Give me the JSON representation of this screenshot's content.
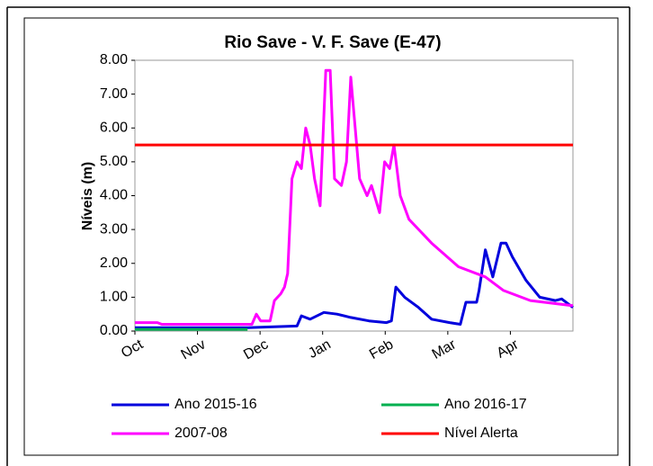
{
  "chart_data": {
    "type": "line",
    "title": "Rio Save - V. F. Save (E-47)",
    "y_label": "Níveis (m)",
    "xlim": [
      0,
      7
    ],
    "xticks": [
      {
        "value": 0,
        "label": "Oct"
      },
      {
        "value": 1,
        "label": "Nov"
      },
      {
        "value": 2,
        "label": "Dec"
      },
      {
        "value": 3,
        "label": "Jan"
      },
      {
        "value": 4,
        "label": "Feb"
      },
      {
        "value": 5,
        "label": "Mar"
      },
      {
        "value": 6,
        "label": "Apr"
      }
    ],
    "ylim": [
      0,
      8
    ],
    "yticks": [
      {
        "value": 0,
        "label": "0.00"
      },
      {
        "value": 1,
        "label": "1.00"
      },
      {
        "value": 2,
        "label": "2.00"
      },
      {
        "value": 3,
        "label": "3.00"
      },
      {
        "value": 4,
        "label": "4.00"
      },
      {
        "value": 5,
        "label": "5.00"
      },
      {
        "value": 6,
        "label": "6.00"
      },
      {
        "value": 7,
        "label": "7.00"
      },
      {
        "value": 8,
        "label": "8.00"
      }
    ],
    "grid": false,
    "series": [
      {
        "name": "Ano 2015-16",
        "color": "#0000dd",
        "x": [
          0,
          1.8,
          2.59,
          2.66,
          2.8,
          3.02,
          3.23,
          3.45,
          3.74,
          4.02,
          4.1,
          4.17,
          4.31,
          4.53,
          4.74,
          5.03,
          5.2,
          5.29,
          5.46,
          5.5,
          5.6,
          5.72,
          5.85,
          5.93,
          6.03,
          6.25,
          6.47,
          6.72,
          6.82,
          7
        ],
        "values": [
          0.1,
          0.1,
          0.15,
          0.45,
          0.35,
          0.55,
          0.5,
          0.4,
          0.3,
          0.25,
          0.3,
          1.3,
          1.0,
          0.7,
          0.35,
          0.25,
          0.2,
          0.85,
          0.85,
          1.2,
          2.4,
          1.6,
          2.6,
          2.6,
          2.2,
          1.5,
          1.0,
          0.9,
          0.95,
          0.7
        ]
      },
      {
        "name": "Ano 2016-17",
        "color": "#00b050",
        "x": [
          0,
          1.8
        ],
        "values": [
          0.05,
          0.05
        ]
      },
      {
        "name": "2007-08",
        "color": "#ff00ff",
        "x": [
          0,
          0.36,
          0.43,
          1.72,
          1.87,
          1.94,
          2.01,
          2.16,
          2.23,
          2.33,
          2.39,
          2.44,
          2.51,
          2.59,
          2.66,
          2.73,
          2.8,
          2.87,
          2.96,
          3.05,
          3.12,
          3.19,
          3.3,
          3.38,
          3.45,
          3.52,
          3.59,
          3.71,
          3.78,
          3.91,
          3.99,
          4.07,
          4.14,
          4.24,
          4.38,
          4.74,
          5.17,
          5.6,
          5.89,
          6.32,
          7
        ],
        "values": [
          0.25,
          0.25,
          0.2,
          0.2,
          0.2,
          0.5,
          0.3,
          0.3,
          0.9,
          1.1,
          1.3,
          1.7,
          4.5,
          5.0,
          4.8,
          6.0,
          5.5,
          4.5,
          3.7,
          7.7,
          7.7,
          4.5,
          4.3,
          5.0,
          7.5,
          6.0,
          4.5,
          4.0,
          4.3,
          3.5,
          5.0,
          4.8,
          5.5,
          4.0,
          3.3,
          2.6,
          1.9,
          1.6,
          1.2,
          0.9,
          0.75
        ]
      },
      {
        "name": "Nível Alerta",
        "color": "#ff0000",
        "x": [
          0,
          7
        ],
        "values": [
          5.5,
          5.5
        ]
      }
    ]
  }
}
